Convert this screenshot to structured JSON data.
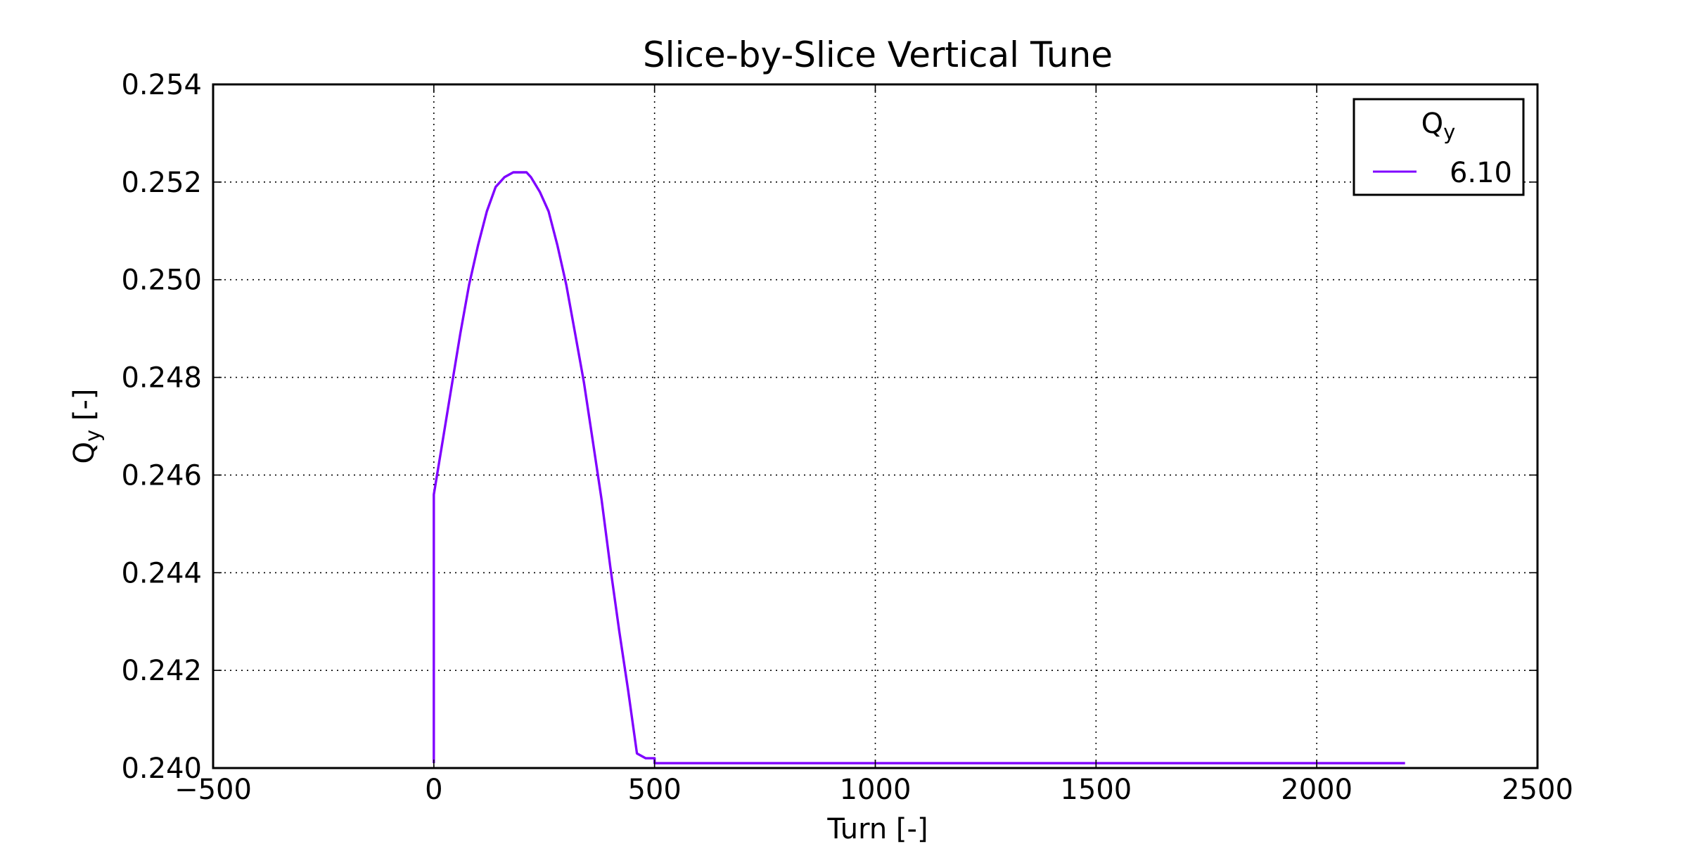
{
  "chart_data": {
    "type": "line",
    "title": "Slice-by-Slice Vertical Tune",
    "xlabel": "Turn [-]",
    "ylabel": {
      "main": "Q",
      "sub": "y",
      "unit": " [-]"
    },
    "xlim": [
      -500,
      2500
    ],
    "ylim": [
      0.24,
      0.254
    ],
    "xticks": [
      "−500",
      "0",
      "500",
      "1000",
      "1500",
      "2000",
      "2500"
    ],
    "xtick_values": [
      -500,
      0,
      500,
      1000,
      1500,
      2000,
      2500
    ],
    "yticks": [
      "0.240",
      "0.242",
      "0.244",
      "0.246",
      "0.248",
      "0.250",
      "0.252",
      "0.254"
    ],
    "ytick_values": [
      0.24,
      0.242,
      0.244,
      0.246,
      0.248,
      0.25,
      0.252,
      0.254
    ],
    "grid": true,
    "legend": {
      "position": "top-right",
      "title_main": "Q",
      "title_sub": "y"
    },
    "series": [
      {
        "name": "6.10",
        "color": "#7f00ff",
        "x": [
          0,
          0,
          0,
          20,
          40,
          60,
          80,
          100,
          120,
          140,
          160,
          180,
          200,
          210,
          220,
          240,
          260,
          280,
          300,
          320,
          340,
          360,
          380,
          400,
          420,
          440,
          460,
          480,
          500,
          500,
          600,
          800,
          1000,
          1200,
          1400,
          1600,
          1800,
          2000,
          2200
        ],
        "y": [
          0.2401,
          0.2456,
          0.2456,
          0.2467,
          0.2478,
          0.2489,
          0.2499,
          0.2507,
          0.2514,
          0.2519,
          0.2521,
          0.2522,
          0.2522,
          0.2522,
          0.2521,
          0.2518,
          0.2514,
          0.2507,
          0.2499,
          0.2489,
          0.2479,
          0.2467,
          0.2455,
          0.2441,
          0.2428,
          0.2416,
          0.2403,
          0.2402,
          0.2402,
          0.2401,
          0.2401,
          0.2401,
          0.2401,
          0.2401,
          0.2401,
          0.2401,
          0.2401,
          0.2401,
          0.2401
        ]
      }
    ]
  }
}
